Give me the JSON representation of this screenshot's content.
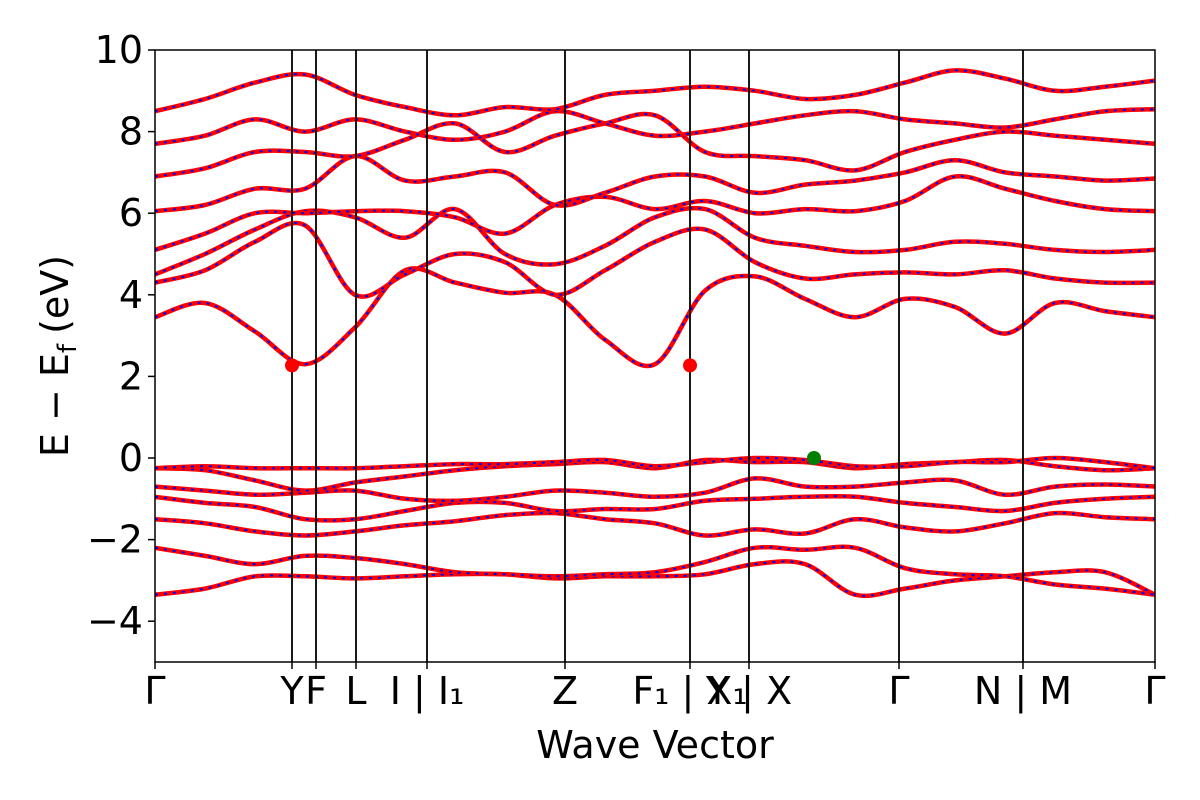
{
  "chart_data": {
    "type": "line",
    "title": "",
    "xlabel": "Wave Vector",
    "ylabel": "E − E_f (eV)",
    "ylabel_main": "E − E",
    "ylabel_sub": "f",
    "ylabel_unit": "(eV)",
    "ylim": [
      -5,
      10
    ],
    "yticks": [
      "−4",
      "−2",
      "0",
      "2",
      "4",
      "6",
      "8",
      "10"
    ],
    "ytick_values": [
      -4,
      -2,
      0,
      2,
      4,
      6,
      8,
      10
    ],
    "xlim": [
      0,
      1
    ],
    "high_symmetry_points": [
      {
        "label": "Γ",
        "x": 0.0
      },
      {
        "label": "Y",
        "x": 0.137
      },
      {
        "label": "F",
        "x": 0.161
      },
      {
        "label": "L",
        "x": 0.201
      },
      {
        "label": "I | I₁",
        "x": 0.272
      },
      {
        "label": "Z",
        "x": 0.41
      },
      {
        "label": "F₁ | X₁",
        "x": 0.535
      },
      {
        "label": "Y | X",
        "x": 0.594
      },
      {
        "label": "Γ",
        "x": 0.744
      },
      {
        "label": "N | M",
        "x": 0.868
      },
      {
        "label": "Γ",
        "x": 1.0
      }
    ],
    "grid": false,
    "legend": "none",
    "series_style": {
      "primary_color": "#ff0000",
      "secondary_color": "#0000ff",
      "line_style": "red solid overlaid with blue dashed"
    },
    "markers": [
      {
        "kind": "CBM",
        "x": 0.137,
        "y": 2.27,
        "color": "#ff0000"
      },
      {
        "kind": "CBM",
        "x": 0.535,
        "y": 2.27,
        "color": "#ff0000"
      },
      {
        "kind": "VBM",
        "x": 0.659,
        "y": 0.0,
        "color": "#008000"
      }
    ],
    "series": [
      {
        "values": [
          -3.35,
          -3.2,
          -2.9,
          -2.9,
          -2.95,
          -2.9,
          -2.85,
          -2.85,
          -2.95,
          -2.9,
          -2.9,
          -2.85,
          -2.6,
          -2.6,
          -3.35,
          -3.2,
          -3.0,
          -2.9,
          -2.8,
          -2.8,
          -3.35
        ]
      },
      {
        "values": [
          -2.2,
          -2.4,
          -2.6,
          -2.4,
          -2.45,
          -2.6,
          -2.8,
          -2.85,
          -2.9,
          -2.85,
          -2.8,
          -2.55,
          -2.2,
          -2.25,
          -2.2,
          -2.7,
          -2.85,
          -2.9,
          -3.1,
          -3.2,
          -3.35
        ]
      },
      {
        "values": [
          -1.5,
          -1.6,
          -1.8,
          -1.9,
          -1.8,
          -1.65,
          -1.55,
          -1.4,
          -1.35,
          -1.5,
          -1.6,
          -1.9,
          -1.75,
          -1.85,
          -1.5,
          -1.7,
          -1.8,
          -1.6,
          -1.35,
          -1.45,
          -1.5
        ]
      },
      {
        "values": [
          -0.95,
          -1.1,
          -1.2,
          -1.5,
          -1.5,
          -1.3,
          -1.1,
          -1.1,
          -1.3,
          -1.25,
          -1.25,
          -1.05,
          -1.0,
          -0.95,
          -0.95,
          -1.1,
          -1.2,
          -1.3,
          -1.1,
          -1.0,
          -0.95
        ]
      },
      {
        "values": [
          -0.7,
          -0.8,
          -0.9,
          -0.85,
          -0.8,
          -1.0,
          -1.05,
          -0.95,
          -0.8,
          -0.85,
          -0.95,
          -0.85,
          -0.5,
          -0.7,
          -0.7,
          -0.6,
          -0.55,
          -0.9,
          -0.7,
          -0.65,
          -0.7
        ]
      },
      {
        "values": [
          -0.25,
          -0.3,
          -0.55,
          -0.8,
          -0.6,
          -0.45,
          -0.3,
          -0.2,
          -0.15,
          -0.1,
          -0.25,
          -0.05,
          -0.1,
          -0.1,
          -0.25,
          -0.15,
          -0.1,
          -0.05,
          -0.2,
          -0.3,
          -0.25
        ]
      },
      {
        "values": [
          -0.25,
          -0.2,
          -0.25,
          -0.25,
          -0.25,
          -0.2,
          -0.15,
          -0.15,
          -0.1,
          -0.05,
          -0.2,
          -0.1,
          0.0,
          -0.05,
          -0.2,
          -0.2,
          -0.1,
          -0.1,
          0.0,
          -0.1,
          -0.25
        ]
      },
      {
        "values": [
          3.45,
          3.8,
          3.1,
          2.3,
          3.2,
          4.6,
          4.3,
          4.05,
          4.0,
          2.9,
          2.3,
          4.1,
          4.45,
          3.9,
          3.45,
          3.9,
          3.7,
          3.05,
          3.8,
          3.6,
          3.45
        ]
      },
      {
        "values": [
          4.3,
          4.6,
          5.3,
          5.7,
          4.0,
          4.5,
          5.0,
          4.8,
          4.0,
          4.6,
          5.3,
          5.6,
          4.8,
          4.4,
          4.5,
          4.55,
          4.5,
          4.6,
          4.4,
          4.3,
          4.3
        ]
      },
      {
        "values": [
          4.5,
          5.0,
          5.6,
          6.05,
          5.9,
          5.4,
          6.1,
          5.0,
          4.75,
          5.2,
          5.9,
          6.1,
          5.4,
          5.2,
          5.05,
          5.1,
          5.3,
          5.25,
          5.1,
          5.05,
          5.1
        ]
      },
      {
        "values": [
          5.1,
          5.5,
          6.0,
          6.0,
          6.05,
          6.05,
          5.9,
          5.5,
          6.2,
          6.4,
          6.1,
          6.3,
          6.0,
          6.1,
          6.05,
          6.3,
          6.9,
          6.6,
          6.3,
          6.1,
          6.05
        ]
      },
      {
        "values": [
          6.05,
          6.2,
          6.6,
          6.6,
          7.4,
          6.8,
          6.9,
          7.0,
          6.2,
          6.5,
          6.9,
          6.9,
          6.5,
          6.7,
          6.8,
          7.0,
          7.3,
          7.0,
          6.9,
          6.8,
          6.85
        ]
      },
      {
        "values": [
          6.9,
          7.1,
          7.5,
          7.5,
          7.4,
          7.8,
          8.2,
          7.5,
          7.9,
          8.2,
          8.4,
          7.5,
          7.4,
          7.3,
          7.05,
          7.5,
          7.8,
          8.0,
          7.9,
          7.8,
          7.7
        ]
      },
      {
        "values": [
          7.7,
          7.9,
          8.3,
          8.0,
          8.3,
          8.0,
          7.8,
          8.0,
          8.5,
          8.2,
          7.9,
          8.0,
          8.2,
          8.4,
          8.5,
          8.3,
          8.2,
          8.1,
          8.3,
          8.5,
          8.55
        ]
      },
      {
        "values": [
          8.5,
          8.8,
          9.2,
          9.4,
          8.9,
          8.6,
          8.4,
          8.6,
          8.55,
          8.9,
          9.0,
          9.1,
          9.0,
          8.8,
          8.9,
          9.2,
          9.5,
          9.3,
          9.0,
          9.1,
          9.25
        ]
      }
    ]
  }
}
